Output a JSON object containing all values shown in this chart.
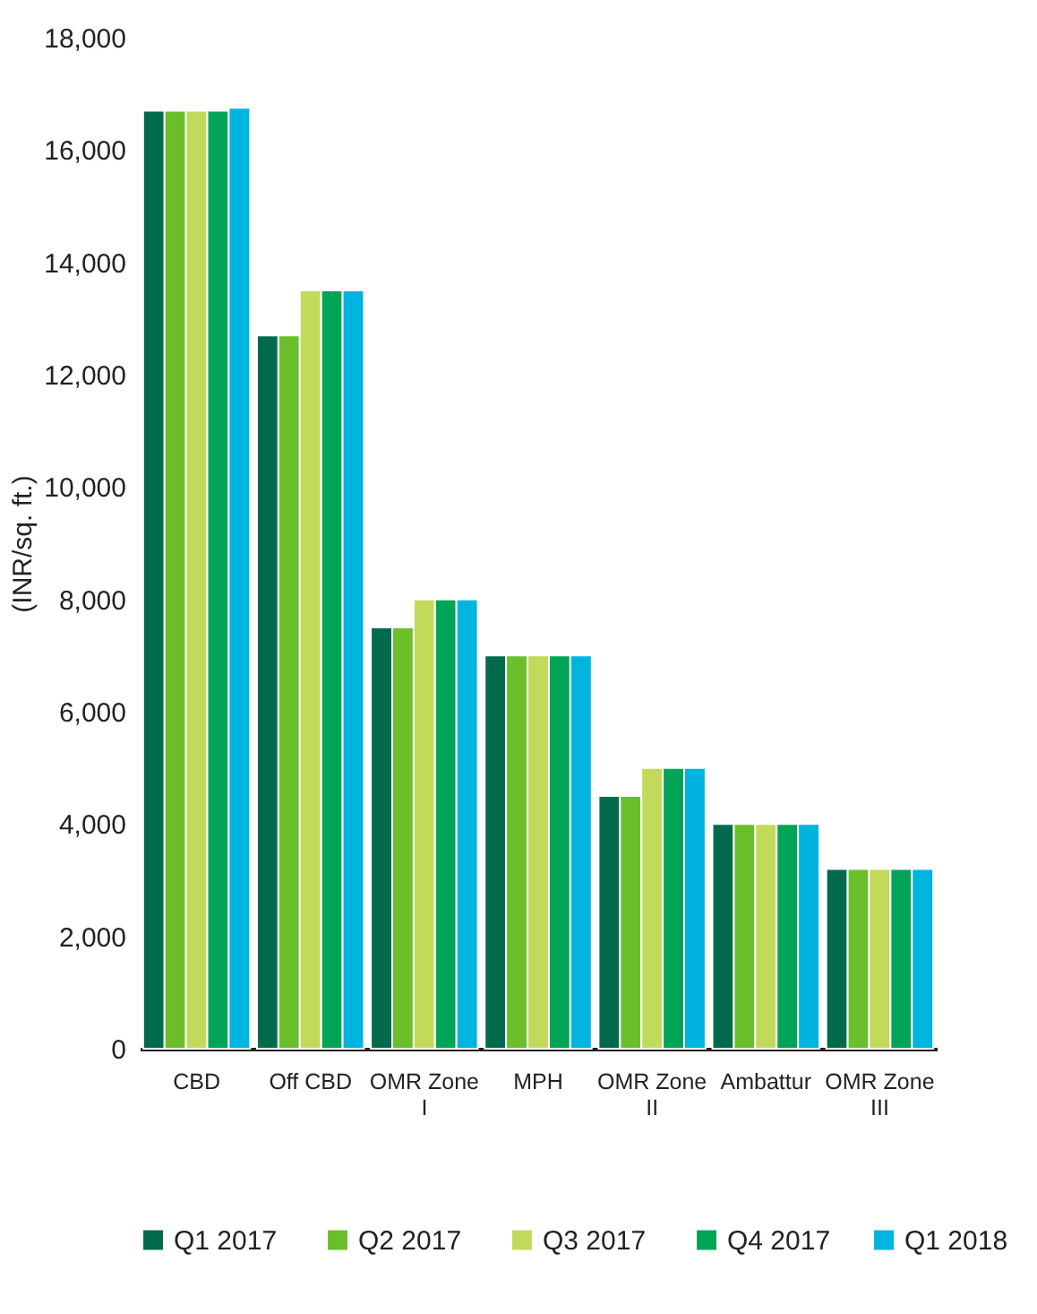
{
  "chart_data": {
    "type": "bar",
    "ylabel": "(INR/sq. ft.)",
    "categories": [
      "CBD",
      "Off CBD",
      "OMR Zone I",
      "MPH",
      "OMR Zone II",
      "Ambattur",
      "OMR Zone III"
    ],
    "series": [
      {
        "name": "Q1  2017",
        "color": "#006b4c",
        "values": [
          16700,
          12700,
          7500,
          7000,
          4500,
          4000,
          3200
        ]
      },
      {
        "name": "Q2  2017",
        "color": "#6abf2a",
        "values": [
          16700,
          12700,
          7500,
          7000,
          4500,
          4000,
          3200
        ]
      },
      {
        "name": "Q3  2017",
        "color": "#c1da5a",
        "values": [
          16700,
          13500,
          8000,
          7000,
          5000,
          4000,
          3200
        ]
      },
      {
        "name": "Q4 2017",
        "color": "#00a457",
        "values": [
          16700,
          13500,
          8000,
          7000,
          5000,
          4000,
          3200
        ]
      },
      {
        "name": "Q1 2018",
        "color": "#00b4e0",
        "values": [
          16750,
          13500,
          8000,
          7000,
          5000,
          4000,
          3200
        ]
      }
    ],
    "ylim": [
      0,
      18000
    ],
    "yticks": [
      0,
      {
        "value": 2000,
        "label": "2,000"
      },
      {
        "value": 4000,
        "label": "4,000"
      },
      {
        "value": 6000,
        "label": "6,000"
      },
      {
        "value": 8000,
        "label": "8,000"
      },
      {
        "value": 10000,
        "label": "10,000"
      },
      {
        "value": 12000,
        "label": "12,000"
      },
      {
        "value": 14000,
        "label": "14,000"
      },
      {
        "value": 16000,
        "label": "16,000"
      },
      {
        "value": 18000,
        "label": "18,000"
      }
    ],
    "grid": false,
    "legend": "bottom"
  }
}
